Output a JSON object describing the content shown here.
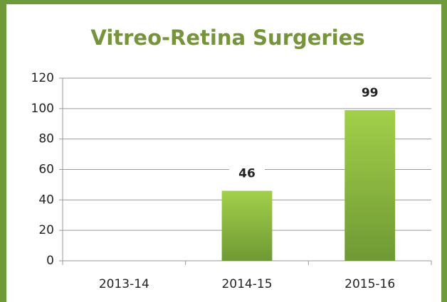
{
  "chart_data": {
    "type": "bar",
    "title": "Vitreo-Retina Surgeries",
    "categories": [
      "2013-14",
      "2014-15",
      "2015-16"
    ],
    "values": [
      null,
      46,
      99
    ],
    "color": "#8fbf3f",
    "ylim": [
      0,
      120
    ],
    "yticks": [
      0,
      20,
      40,
      60,
      80,
      100,
      120
    ],
    "grid": true
  }
}
